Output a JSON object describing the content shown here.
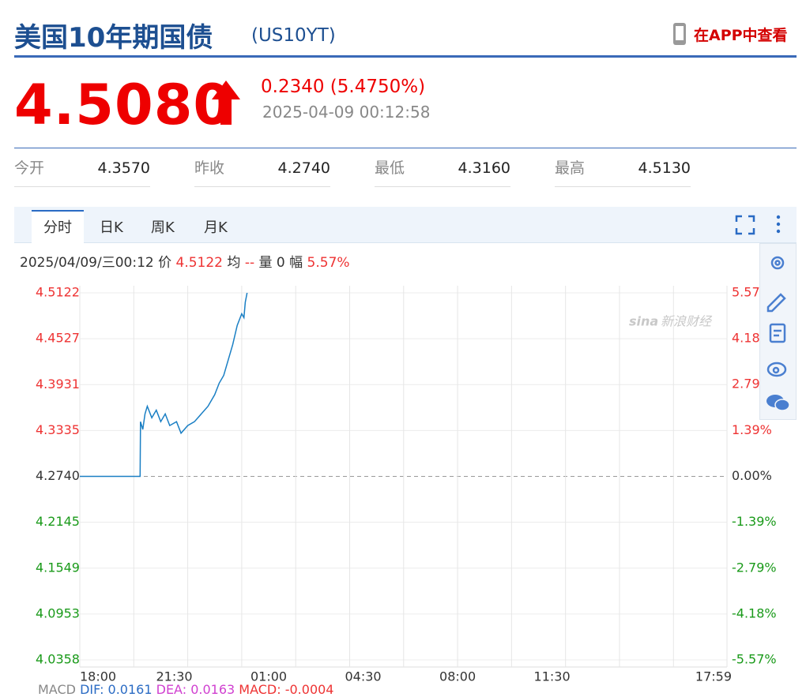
{
  "header": {
    "title": "美国10年期国债",
    "symbol": "(US10YT)",
    "app_link": "在APP中查看"
  },
  "quote": {
    "price": "4.5080",
    "change": "0.2340",
    "change_pct": "(5.4750%)",
    "time": "2025-04-09 00:12:58"
  },
  "stats": [
    {
      "label": "今开",
      "value": "4.3570"
    },
    {
      "label": "昨收",
      "value": "4.2740"
    },
    {
      "label": "最低",
      "value": "4.3160"
    },
    {
      "label": "最高",
      "value": "4.5130"
    }
  ],
  "tabs": [
    "分时",
    "日K",
    "周K",
    "月K"
  ],
  "info": {
    "datetime": "2025/04/09/三00:12",
    "price_label": "价",
    "price": "4.5122",
    "avg_label": "均",
    "avg": "--",
    "vol_label": "量",
    "vol": "0",
    "amp_label": "幅",
    "amp": "5.57%"
  },
  "watermark": "新浪财经",
  "macd": {
    "label": "MACD",
    "dif": "DIF: 0.0161",
    "dea": "DEA: 0.0163",
    "macd": "MACD: -0.0004"
  },
  "chart_data": {
    "type": "line",
    "x": [
      "18:00",
      "20:14",
      "20:15",
      "20:20",
      "20:25",
      "20:30",
      "20:40",
      "20:50",
      "21:00",
      "21:10",
      "21:20",
      "21:35",
      "21:45",
      "22:00",
      "22:15",
      "22:30",
      "22:45",
      "23:00",
      "23:10",
      "23:20",
      "23:30",
      "23:40",
      "23:50",
      "00:00",
      "00:05",
      "00:08",
      "00:12"
    ],
    "series": [
      {
        "name": "价",
        "color": "#1a7fc4",
        "values": [
          4.274,
          4.274,
          4.345,
          4.335,
          4.355,
          4.365,
          4.35,
          4.36,
          4.345,
          4.355,
          4.34,
          4.345,
          4.33,
          4.34,
          4.345,
          4.355,
          4.365,
          4.38,
          4.395,
          4.405,
          4.425,
          4.445,
          4.47,
          4.485,
          4.48,
          4.5,
          4.5122
        ]
      }
    ],
    "xlim": [
      "18:00",
      "17:59"
    ],
    "xticks": [
      "18:00",
      "21:30",
      "01:00",
      "04:30",
      "08:00",
      "11:30",
      "17:59"
    ],
    "ylim": [
      4.0358,
      4.5122
    ],
    "yticks": [
      4.5122,
      4.4527,
      4.3931,
      4.3335,
      {
        "value": 4.274,
        "label": "4.2740"
      },
      4.2145,
      4.1549,
      4.0953,
      4.0358
    ],
    "y2lim": [
      -5.57,
      5.57
    ],
    "y2ticks": [
      {
        "value": 5.57,
        "label": "5.57%"
      },
      {
        "value": 4.18,
        "label": "4.18%"
      },
      {
        "value": 2.79,
        "label": "2.79%"
      },
      {
        "value": 1.39,
        "label": "1.39%"
      },
      {
        "value": 0,
        "label": "0.00%"
      },
      {
        "value": -1.39,
        "label": "-1.39%"
      },
      {
        "value": -2.79,
        "label": "-2.79%"
      },
      {
        "value": -4.18,
        "label": "-4.18%"
      },
      {
        "value": -5.57,
        "label": "-5.57%"
      }
    ],
    "grid": true
  }
}
